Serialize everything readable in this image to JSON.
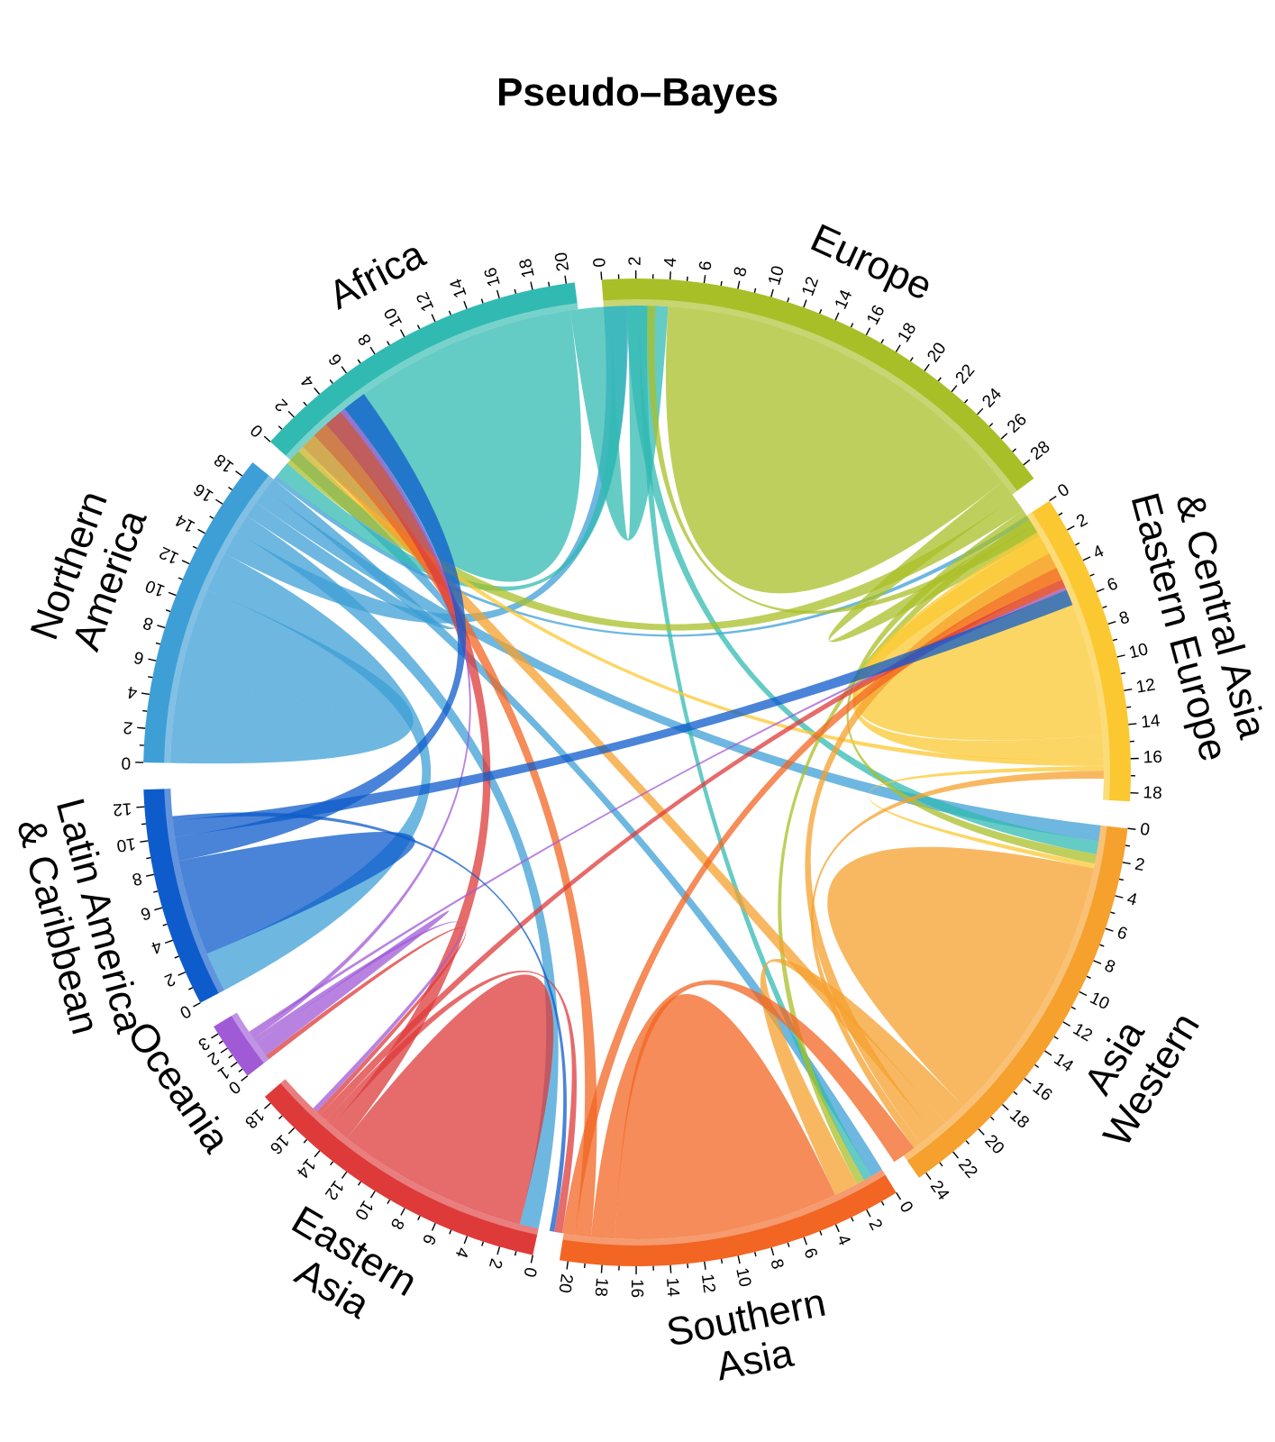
{
  "chart_data": {
    "type": "chord",
    "title": "Pseudo–Bayes",
    "unit_note": "",
    "regions": [
      {
        "name": "Northern America",
        "label_lines": [
          "Northern",
          "America"
        ],
        "total": 19,
        "tick_step": 2,
        "tick_max": 18,
        "color": "#3E9FD6"
      },
      {
        "name": "Africa",
        "label_lines": [
          "Africa"
        ],
        "total": 20.5,
        "tick_step": 2,
        "tick_max": 20,
        "color": "#31BAB1"
      },
      {
        "name": "Europe",
        "label_lines": [
          "Europe"
        ],
        "total": 29,
        "tick_step": 2,
        "tick_max": 28,
        "color": "#A9BF27"
      },
      {
        "name": "Eastern Europe & Central Asia",
        "label_lines": [
          "& Central Asia",
          "Eastern Europe"
        ],
        "total": 18.5,
        "tick_step": 2,
        "tick_max": 18,
        "color": "#FBC832"
      },
      {
        "name": "Western Asia",
        "label_lines": [
          "Asia",
          "Western"
        ],
        "total": 24.5,
        "tick_step": 2,
        "tick_max": 24,
        "color": "#F6A02D"
      },
      {
        "name": "Southern Asia",
        "label_lines": [
          "Southern",
          "Asia"
        ],
        "total": 20.5,
        "tick_step": 2,
        "tick_max": 20,
        "color": "#F26522"
      },
      {
        "name": "Eastern Asia",
        "label_lines": [
          "Eastern",
          "Asia"
        ],
        "total": 18.5,
        "tick_step": 2,
        "tick_max": 18,
        "color": "#DE3A3A"
      },
      {
        "name": "Oceania",
        "label_lines": [
          "Oceania"
        ],
        "total": 3.5,
        "tick_step": 1,
        "tick_max": 3,
        "color": "#A05AD6"
      },
      {
        "name": "Latin America & Caribbean",
        "label_lines": [
          "Latin America",
          "& Caribbean"
        ],
        "total": 13,
        "tick_step": 2,
        "tick_max": 12,
        "color": "#0E5BCB"
      }
    ],
    "flows": [
      {
        "from": "Northern America",
        "to": "Northern America",
        "value": 5.5
      },
      {
        "from": "Northern America",
        "to": "Latin America & Caribbean",
        "value": 2.5
      },
      {
        "from": "Northern America",
        "to": "Europe",
        "value": 1.5
      },
      {
        "from": "Northern America",
        "to": "Eastern Asia",
        "value": 1.2
      },
      {
        "from": "Northern America",
        "to": "Africa",
        "value": 1.0
      },
      {
        "from": "Northern America",
        "to": "Western Asia",
        "value": 1.0
      },
      {
        "from": "Northern America",
        "to": "Southern Asia",
        "value": 0.8
      },
      {
        "from": "Northern America",
        "to": "Eastern Europe & Central Asia",
        "value": 0.3
      },
      {
        "from": "Africa",
        "to": "Africa",
        "value": 9.5
      },
      {
        "from": "Africa",
        "to": "Europe",
        "value": 2.5
      },
      {
        "from": "Africa",
        "to": "Northern America",
        "value": 1.0
      },
      {
        "from": "Africa",
        "to": "Western Asia",
        "value": 0.8
      },
      {
        "from": "Africa",
        "to": "Southern Asia",
        "value": 0.5
      },
      {
        "from": "Europe",
        "to": "Europe",
        "value": 12.0
      },
      {
        "from": "Europe",
        "to": "Eastern Europe & Central Asia",
        "value": 1.2
      },
      {
        "from": "Europe",
        "to": "Northern America",
        "value": 1.0
      },
      {
        "from": "Europe",
        "to": "Western Asia",
        "value": 0.6
      },
      {
        "from": "Europe",
        "to": "Southern Asia",
        "value": 0.5
      },
      {
        "from": "Europe",
        "to": "Africa",
        "value": 0.5
      },
      {
        "from": "Eastern Europe & Central Asia",
        "to": "Eastern Europe & Central Asia",
        "value": 6.5
      },
      {
        "from": "Eastern Europe & Central Asia",
        "to": "Europe",
        "value": 1.5
      },
      {
        "from": "Eastern Europe & Central Asia",
        "to": "Northern America",
        "value": 0.4
      },
      {
        "from": "Eastern Europe & Central Asia",
        "to": "Western Asia",
        "value": 0.3
      },
      {
        "from": "Western Asia",
        "to": "Western Asia",
        "value": 8.5
      },
      {
        "from": "Western Asia",
        "to": "Southern Asia",
        "value": 1.5
      },
      {
        "from": "Western Asia",
        "to": "Northern America",
        "value": 1.0
      },
      {
        "from": "Western Asia",
        "to": "Europe",
        "value": 1.0
      },
      {
        "from": "Western Asia",
        "to": "Eastern Europe & Central Asia",
        "value": 0.5
      },
      {
        "from": "Southern Asia",
        "to": "Southern Asia",
        "value": 7.0
      },
      {
        "from": "Southern Asia",
        "to": "Western Asia",
        "value": 1.5
      },
      {
        "from": "Southern Asia",
        "to": "Northern America",
        "value": 1.0
      },
      {
        "from": "Southern Asia",
        "to": "Europe",
        "value": 0.8
      },
      {
        "from": "Eastern Asia",
        "to": "Eastern Asia",
        "value": 6.0
      },
      {
        "from": "Eastern Asia",
        "to": "Northern America",
        "value": 1.2
      },
      {
        "from": "Eastern Asia",
        "to": "Southern Asia",
        "value": 0.5
      },
      {
        "from": "Eastern Asia",
        "to": "Europe",
        "value": 0.5
      },
      {
        "from": "Eastern Asia",
        "to": "Oceania",
        "value": 0.3
      },
      {
        "from": "Oceania",
        "to": "Oceania",
        "value": 0.5
      },
      {
        "from": "Oceania",
        "to": "Eastern Asia",
        "value": 0.3
      },
      {
        "from": "Oceania",
        "to": "Northern America",
        "value": 0.3
      },
      {
        "from": "Oceania",
        "to": "Europe",
        "value": 0.2
      },
      {
        "from": "Latin America & Caribbean",
        "to": "Latin America & Caribbean",
        "value": 3.0
      },
      {
        "from": "Latin America & Caribbean",
        "to": "Northern America",
        "value": 1.5
      },
      {
        "from": "Latin America & Caribbean",
        "to": "Europe",
        "value": 1.0
      },
      {
        "from": "Latin America & Caribbean",
        "to": "Southern Asia",
        "value": 0.3
      }
    ]
  }
}
